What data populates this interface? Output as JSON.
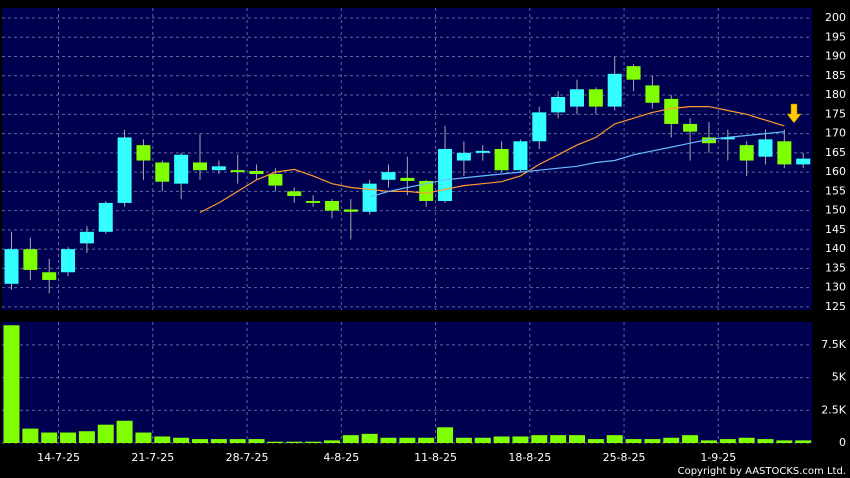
{
  "chart_data": [
    {
      "type": "candlestick",
      "open": [
        131,
        140,
        134,
        134,
        141.5,
        144.5,
        152,
        167,
        162.5,
        157,
        162.5,
        160.5,
        160.5,
        160.3,
        159.5,
        155,
        152.5,
        152.5,
        150.3,
        149.7,
        158,
        158.5,
        157.7,
        152.5,
        163,
        165,
        166,
        160.5,
        168,
        175.5,
        177,
        181.5,
        177,
        187.5,
        182.5,
        179,
        172.5,
        169,
        168.5,
        167,
        164,
        168,
        162
      ],
      "high": [
        144.5,
        143,
        137.5,
        140.5,
        146,
        152.5,
        171,
        168.5,
        163,
        165,
        170,
        163,
        164.5,
        162,
        161,
        156,
        154,
        153,
        153,
        158,
        162,
        164,
        158,
        172,
        168,
        167,
        168,
        168.5,
        177,
        181,
        184,
        182,
        190,
        188,
        185,
        180,
        174,
        173,
        171,
        168,
        171,
        171,
        165
      ],
      "low": [
        129.5,
        132,
        128.5,
        133,
        139,
        144,
        151,
        158,
        155,
        153,
        158,
        159.5,
        157,
        158,
        155,
        152,
        151,
        148,
        142.5,
        149,
        156,
        154,
        151,
        152,
        159,
        163,
        160,
        160,
        166,
        174,
        175,
        175,
        176,
        181,
        176.5,
        169,
        163,
        165,
        163,
        159,
        162,
        161,
        161
      ],
      "close": [
        140,
        134.6,
        132,
        140,
        144.5,
        152,
        169,
        163,
        157.5,
        164.5,
        160.5,
        161.5,
        160,
        159.5,
        156.5,
        153.8,
        152,
        150,
        149.7,
        157,
        160,
        157.7,
        152.5,
        166,
        165,
        165.5,
        160.5,
        168,
        175.5,
        179.5,
        181.5,
        177,
        185.5,
        184,
        178,
        172.5,
        170.5,
        167.5,
        169,
        163,
        168.5,
        162,
        163.5
      ],
      "up_color": "#33ffff",
      "down_color": "#80ff00",
      "lines": [
        {
          "color": "#ff9933",
          "values": [
            null,
            null,
            null,
            null,
            null,
            null,
            null,
            null,
            null,
            null,
            149.5,
            152,
            155,
            158,
            160,
            160.7,
            159,
            157,
            156,
            155.5,
            155,
            155,
            154.5,
            155.5,
            156.5,
            157,
            157.5,
            159,
            162,
            164.5,
            167,
            169,
            172.5,
            174,
            175.5,
            176.5,
            177,
            177,
            176,
            175,
            173.5,
            172,
            null
          ]
        },
        {
          "color": "#66bbff",
          "values": [
            null,
            null,
            null,
            null,
            null,
            null,
            null,
            null,
            null,
            null,
            null,
            null,
            null,
            null,
            null,
            null,
            null,
            null,
            null,
            153.5,
            155,
            156,
            157,
            158,
            158.5,
            159,
            159.5,
            160,
            160.5,
            161,
            161.5,
            162.5,
            163,
            164.5,
            165.5,
            166.5,
            167.5,
            168.5,
            169,
            169.5,
            170,
            170.5,
            null
          ]
        }
      ],
      "ylim": [
        124.2,
        202.6
      ],
      "yticks": [
        125,
        130,
        135,
        140,
        145,
        150,
        155,
        160,
        165,
        170,
        175,
        180,
        185,
        190,
        195,
        200
      ],
      "grid": true
    },
    {
      "type": "bar",
      "categories": [
        null,
        null,
        null,
        "14-7-25",
        null,
        null,
        null,
        null,
        "21-7-25",
        null,
        null,
        null,
        null,
        "28-7-25",
        null,
        null,
        null,
        null,
        "4-8-25",
        null,
        null,
        null,
        null,
        "11-8-25",
        null,
        null,
        null,
        null,
        "18-8-25",
        null,
        null,
        null,
        null,
        "25-8-25",
        null,
        null,
        null,
        null,
        "1-9-25",
        null,
        null,
        null,
        null
      ],
      "values": [
        9000,
        1100,
        800,
        800,
        900,
        1400,
        1700,
        800,
        500,
        400,
        300,
        300,
        300,
        300,
        100,
        100,
        100,
        200,
        600,
        700,
        400,
        400,
        400,
        1200,
        400,
        400,
        500,
        500,
        600,
        600,
        600,
        300,
        600,
        300,
        300,
        400,
        600,
        200,
        300,
        400,
        300,
        200,
        200
      ],
      "color": "#80ff00",
      "ylim": [
        0,
        9250
      ],
      "yticks": [
        0,
        {
          "value": 2500,
          "label": "2.5K"
        },
        {
          "value": 5000,
          "label": "5K"
        },
        {
          "value": 7500,
          "label": "7.5K"
        }
      ],
      "grid": true,
      "copyright": "Copyright by AASTOCKS.com Ltd."
    }
  ]
}
